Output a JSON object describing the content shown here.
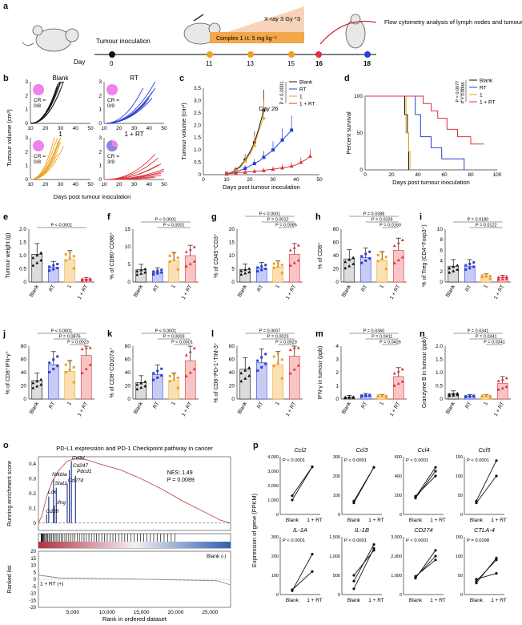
{
  "colors": {
    "blank": "#111111",
    "rt": "#2b3fd6",
    "one": "#f0a020",
    "onert": "#e0303a",
    "pink": "#ee82ee",
    "lav": "#8888dd",
    "gsea": "#c0504d"
  },
  "panel_a": {
    "label": "a",
    "day_label": "Day",
    "days": [
      "0",
      "11",
      "13",
      "15",
      "16",
      "18"
    ],
    "tumour_inoculation": "Tumour inoculation",
    "complex": "Complex 1 i.t. 5 mg kg⁻¹",
    "xray": "X-ray 3 Gy *3",
    "flow": "Flow cytometry analysis of lymph nodes and tumours"
  },
  "panel_b": {
    "label": "b",
    "groups": [
      {
        "title": "Blank",
        "cr": "CR =",
        "crv": "0/8",
        "color": "#111111"
      },
      {
        "title": "RT",
        "cr": "CR =",
        "crv": "0/9",
        "color": "#2b3fd6"
      },
      {
        "title": "1",
        "cr": "CR =",
        "crv": "0/8",
        "color": "#f0a020"
      },
      {
        "title": "1 + RT",
        "cr": "CR =",
        "crv": "3/9",
        "color": "#e0303a"
      }
    ],
    "ylabel": "Tumour volume (cm³)",
    "xlabel": "Days post tumour inoculation",
    "yticks": [
      "0",
      "1",
      "2",
      "3"
    ],
    "xticks": [
      "10",
      "20",
      "30",
      "40",
      "50"
    ]
  },
  "panel_c": {
    "label": "c",
    "title": "Day 26",
    "ylabel": "Tumour volume (cm³)",
    "xlabel": "Days post tumour inoculation",
    "pval": "P < 0.0001",
    "yticks": [
      "0",
      "0.5",
      "1.0",
      "1.5",
      "2.0",
      "2.5",
      "3.0",
      "3.5"
    ],
    "xticks": [
      "0",
      "10",
      "20",
      "30",
      "40",
      "50"
    ],
    "legend": [
      "Blank",
      "RT",
      "1",
      "1 + RT"
    ]
  },
  "panel_d": {
    "label": "d",
    "ylabel": "Percent survival",
    "xlabel": "Days post tumour inoculation",
    "yticks": [
      "0",
      "50",
      "100"
    ],
    "xticks": [
      "0",
      "20",
      "40",
      "60",
      "80",
      "100"
    ],
    "legend": [
      "Blank",
      "RT",
      "1",
      "1 + RT"
    ],
    "pvals": [
      "P = 0.0077",
      "P = 0.0008"
    ]
  },
  "bar_panels": [
    {
      "label": "e",
      "ylabel": "Tumour weight (g)",
      "yticks": [
        "0",
        "0.5",
        "1.0",
        "1.5",
        "2.0"
      ],
      "pvals": [
        "P < 0.0001"
      ]
    },
    {
      "label": "f",
      "ylabel": "% of CD80⁺CD86⁺",
      "yticks": [
        "0",
        "5",
        "10",
        "15"
      ],
      "pvals": [
        "P < 0.0001",
        "P < 0.0001"
      ]
    },
    {
      "label": "g",
      "ylabel": "% of CD45⁺CD3⁺",
      "yticks": [
        "0",
        "5",
        "10",
        "15",
        "20"
      ],
      "pvals": [
        "P < 0.0001",
        "P = 0.0012",
        "P = 0.0085"
      ]
    },
    {
      "label": "h",
      "ylabel": "% of CD8⁺",
      "yticks": [
        "0",
        "20",
        "40",
        "60",
        "80"
      ],
      "pvals": [
        "P = 0.0388",
        "P = 0.0326",
        "P = 0.0160"
      ]
    },
    {
      "label": "i",
      "ylabel": "% of Treg (CD4⁺Foxp3⁺)",
      "yticks": [
        "0",
        "2",
        "4",
        "6",
        "8",
        "10"
      ],
      "pvals": [
        "P = 0.0180",
        "P = 0.0122"
      ]
    },
    {
      "label": "j",
      "ylabel": "% of CD8⁺IFN-γ⁺",
      "yticks": [
        "0",
        "20",
        "40",
        "60",
        "80"
      ],
      "pvals": [
        "P < 0.0001",
        "P = 0.0876",
        "P = 0.0023"
      ]
    },
    {
      "label": "k",
      "ylabel": "% of CD8⁺CD107a⁺",
      "yticks": [
        "0",
        "20",
        "40",
        "60",
        "80"
      ],
      "pvals": [
        "P < 0.0001",
        "P = 0.0003",
        "P < 0.0001"
      ]
    },
    {
      "label": "l",
      "ylabel": "% of CD8⁺PD-1⁺TIM-3⁺",
      "yticks": [
        "0",
        "20",
        "40",
        "60",
        "80"
      ],
      "pvals": [
        "P = 0.0007",
        "P = 0.0023",
        "P = 0.0023"
      ]
    },
    {
      "label": "m",
      "ylabel": "IFN-γ in tumour (ppb)",
      "yticks": [
        "0",
        "1",
        "2",
        "3",
        "4"
      ],
      "pvals": [
        "P = 0.0360",
        "P = 0.0411",
        "P = 0.0426"
      ]
    },
    {
      "label": "n",
      "ylabel": "Granzyme B in tumour (ppb)",
      "yticks": [
        "0",
        "0.5",
        "1.0",
        "1.5",
        "2.0"
      ],
      "pvals": [
        "P = 0.0341",
        "P = 0.0341",
        "P = 0.0341"
      ]
    }
  ],
  "groups_x": [
    "Blank",
    "RT",
    "1",
    "1 + RT"
  ],
  "panel_o": {
    "label": "o",
    "title": "PD-L1 expression and PD-1 Checkpoint pathway in cancer",
    "ylabel": "Running enrichment score",
    "ylabel2": "Ranked list",
    "xlabel": "Rank in ordered dataset",
    "nes": "NES: 1.49",
    "p": "P = 0.0089",
    "genes": [
      "Cd3d",
      "Cd247",
      "Pdcd1",
      "Nfkbia",
      "Cd274",
      "Stat1",
      "Lck",
      "Ifng",
      "Cd28"
    ],
    "yticks": [
      "0",
      "0.1",
      "0.2",
      "0.3",
      "0.4"
    ],
    "yticks2": [
      "20",
      "15",
      "10",
      "5",
      "0",
      "-5",
      "-10",
      "-15",
      "-20"
    ],
    "xticks": [
      "5,000",
      "10,000",
      "15,000",
      "20,000",
      "25,000"
    ],
    "blank_neg": "Blank (-)",
    "onert_pos": "1 + RT (+)"
  },
  "panel_p": {
    "label": "p",
    "ylabel": "Expression of gene (FPKM)",
    "xcats": [
      "Blank",
      "1 + RT"
    ],
    "genes": [
      {
        "name": "Ccl2",
        "p": "P < 0.0001",
        "yticks": [
          "0",
          "1,000",
          "2,000",
          "3,000",
          "4,000"
        ]
      },
      {
        "name": "Ccl3",
        "p": "P < 0.0001",
        "yticks": [
          "0",
          "100",
          "200",
          "300"
        ]
      },
      {
        "name": "Ccl4",
        "p": "P < 0.0001",
        "yticks": [
          "0",
          "200",
          "400",
          "600"
        ]
      },
      {
        "name": "Ccl5",
        "p": "P < 0.0001",
        "yticks": [
          "0",
          "50",
          "100",
          "150"
        ]
      },
      {
        "name": "IL-1A",
        "p": "P < 0.0001",
        "yticks": [
          "0",
          "100",
          "200",
          "300"
        ]
      },
      {
        "name": "IL-1B",
        "p": "P < 0.0001",
        "yticks": [
          "0",
          "500",
          "1,000",
          "1,500"
        ]
      },
      {
        "name": "CD274",
        "p": "P < 0.0001",
        "yticks": [
          "0",
          "1,000",
          "2,000",
          "3,000"
        ]
      },
      {
        "name": "CTLA-4",
        "p": "P = 0.0298",
        "yticks": [
          "0",
          "50",
          "100",
          "150"
        ]
      }
    ]
  },
  "chart_data": [
    {
      "type": "line",
      "xlabel": "Days post tumour inoculation",
      "ylabel": "Tumour volume (cm³)",
      "title": "Day 26",
      "series": [
        {
          "name": "Blank",
          "x": [
            10,
            12,
            14,
            16,
            18,
            20,
            22,
            24,
            26
          ],
          "y": [
            0.05,
            0.1,
            0.2,
            0.35,
            0.6,
            0.9,
            1.3,
            1.9,
            2.6
          ]
        },
        {
          "name": "RT",
          "x": [
            10,
            12,
            14,
            16,
            18,
            20,
            22,
            24,
            26,
            28,
            30,
            32,
            34,
            36,
            38
          ],
          "y": [
            0.05,
            0.08,
            0.12,
            0.18,
            0.25,
            0.35,
            0.45,
            0.55,
            0.7,
            0.85,
            1.0,
            1.2,
            1.4,
            1.6,
            1.8
          ]
        },
        {
          "name": "1",
          "x": [
            10,
            12,
            14,
            16,
            18,
            20,
            22,
            24,
            26
          ],
          "y": [
            0.05,
            0.1,
            0.18,
            0.3,
            0.55,
            0.8,
            1.2,
            1.8,
            2.3
          ]
        },
        {
          "name": "1 + RT",
          "x": [
            10,
            12,
            14,
            16,
            18,
            20,
            22,
            24,
            26,
            28,
            30,
            32,
            34,
            36,
            38,
            40,
            42,
            44,
            46
          ],
          "y": [
            0.03,
            0.05,
            0.07,
            0.09,
            0.1,
            0.12,
            0.14,
            0.15,
            0.17,
            0.2,
            0.22,
            0.25,
            0.28,
            0.3,
            0.35,
            0.4,
            0.5,
            0.6,
            0.75
          ]
        }
      ],
      "ylim": [
        0,
        3.5
      ],
      "xlim": [
        0,
        50
      ]
    },
    {
      "type": "line",
      "xlabel": "Days post tumour inoculation",
      "ylabel": "Percent survival",
      "series": [
        {
          "name": "Blank",
          "steps": [
            [
              0,
              100
            ],
            [
              28,
              100
            ],
            [
              30,
              75
            ],
            [
              32,
              50
            ],
            [
              33,
              0
            ]
          ]
        },
        {
          "name": "RT",
          "steps": [
            [
              0,
              100
            ],
            [
              35,
              100
            ],
            [
              38,
              75
            ],
            [
              42,
              45
            ],
            [
              50,
              30
            ],
            [
              58,
              15
            ],
            [
              75,
              0
            ]
          ]
        },
        {
          "name": "1",
          "steps": [
            [
              0,
              100
            ],
            [
              29,
              100
            ],
            [
              31,
              50
            ],
            [
              33,
              25
            ],
            [
              34,
              0
            ]
          ]
        },
        {
          "name": "1 + RT",
          "steps": [
            [
              0,
              100
            ],
            [
              40,
              100
            ],
            [
              44,
              90
            ],
            [
              50,
              80
            ],
            [
              55,
              70
            ],
            [
              62,
              55
            ],
            [
              70,
              45
            ],
            [
              80,
              35
            ],
            [
              90,
              35
            ]
          ]
        }
      ],
      "ylim": [
        0,
        100
      ],
      "xlim": [
        0,
        100
      ]
    },
    {
      "type": "bar",
      "title": "e",
      "categories": [
        "Blank",
        "RT",
        "1",
        "1 + RT"
      ],
      "values": [
        1.05,
        0.55,
        0.85,
        0.1
      ],
      "ylim": [
        0,
        2.0
      ]
    },
    {
      "type": "bar",
      "title": "f",
      "categories": [
        "Blank",
        "RT",
        "1",
        "1 + RT"
      ],
      "values": [
        3.5,
        2.8,
        6.0,
        7.5
      ],
      "ylim": [
        0,
        15
      ]
    },
    {
      "type": "bar",
      "title": "g",
      "categories": [
        "Blank",
        "RT",
        "1",
        "1 + RT"
      ],
      "values": [
        4.8,
        5.2,
        5.6,
        10.5
      ],
      "ylim": [
        0,
        20
      ]
    },
    {
      "type": "bar",
      "title": "h",
      "categories": [
        "Blank",
        "RT",
        "1",
        "1 + RT"
      ],
      "values": [
        35,
        37,
        33,
        48
      ],
      "ylim": [
        0,
        80
      ]
    },
    {
      "type": "bar",
      "title": "i",
      "categories": [
        "Blank",
        "RT",
        "1",
        "1 + RT"
      ],
      "values": [
        3.0,
        3.0,
        1.0,
        0.8
      ],
      "ylim": [
        0,
        10
      ]
    },
    {
      "type": "bar",
      "title": "j",
      "categories": [
        "Blank",
        "RT",
        "1",
        "1 + RT"
      ],
      "values": [
        28,
        52,
        42,
        66
      ],
      "ylim": [
        0,
        80
      ]
    },
    {
      "type": "bar",
      "title": "k",
      "categories": [
        "Blank",
        "RT",
        "1",
        "1 + RT"
      ],
      "values": [
        25,
        37,
        28,
        58
      ],
      "ylim": [
        0,
        80
      ]
    },
    {
      "type": "bar",
      "title": "l",
      "categories": [
        "Blank",
        "RT",
        "1",
        "1 + RT"
      ],
      "values": [
        45,
        55,
        52,
        65
      ],
      "ylim": [
        0,
        80
      ]
    },
    {
      "type": "bar",
      "title": "m",
      "categories": [
        "Blank",
        "RT",
        "1",
        "1 + RT"
      ],
      "values": [
        0.15,
        0.25,
        0.2,
        1.7
      ],
      "ylim": [
        0,
        4
      ]
    },
    {
      "type": "bar",
      "title": "n",
      "categories": [
        "Blank",
        "RT",
        "1",
        "1 + RT"
      ],
      "values": [
        0.2,
        0.1,
        0.1,
        0.6
      ],
      "ylim": [
        0,
        2.0
      ]
    },
    {
      "type": "line",
      "title": "PD-L1 expression and PD-1 Checkpoint pathway in cancer",
      "xlabel": "Rank in ordered dataset",
      "ylabel": "Running enrichment score",
      "ylim": [
        -0.05,
        0.45
      ],
      "xlim": [
        0,
        28000
      ]
    },
    {
      "type": "line",
      "title": "Ccl2",
      "categories": [
        "Blank",
        "1 + RT"
      ],
      "series": [
        {
          "values": [
            1000,
            3300
          ]
        },
        {
          "values": [
            1300,
            3300
          ]
        }
      ],
      "ylim": [
        0,
        4000
      ]
    },
    {
      "type": "line",
      "title": "Ccl3",
      "categories": [
        "Blank",
        "1 + RT"
      ],
      "series": [
        {
          "values": [
            60,
            245
          ]
        },
        {
          "values": [
            70,
            245
          ]
        }
      ],
      "ylim": [
        0,
        300
      ]
    },
    {
      "type": "line",
      "title": "Ccl4",
      "categories": [
        "Blank",
        "1 + RT"
      ],
      "series": [
        {
          "values": [
            170,
            450
          ]
        },
        {
          "values": [
            180,
            490
          ]
        },
        {
          "values": [
            190,
            400
          ]
        }
      ],
      "ylim": [
        0,
        600
      ]
    },
    {
      "type": "line",
      "title": "Ccl5",
      "categories": [
        "Blank",
        "1 + RT"
      ],
      "series": [
        {
          "values": [
            30,
            100
          ]
        },
        {
          "values": [
            35,
            140
          ]
        }
      ],
      "ylim": [
        0,
        150
      ]
    },
    {
      "type": "line",
      "title": "IL-1A",
      "categories": [
        "Blank",
        "1 + RT"
      ],
      "series": [
        {
          "values": [
            20,
            210
          ]
        },
        {
          "values": [
            25,
            120
          ]
        }
      ],
      "ylim": [
        0,
        300
      ]
    },
    {
      "type": "line",
      "title": "IL-1B",
      "categories": [
        "Blank",
        "1 + RT"
      ],
      "series": [
        {
          "values": [
            150,
            1200
          ]
        },
        {
          "values": [
            350,
            1300
          ]
        },
        {
          "values": [
            500,
            1150
          ]
        }
      ],
      "ylim": [
        0,
        1500
      ]
    },
    {
      "type": "line",
      "title": "CD274",
      "categories": [
        "Blank",
        "1 + RT"
      ],
      "series": [
        {
          "values": [
            850,
            2300
          ]
        },
        {
          "values": [
            900,
            2000
          ]
        },
        {
          "values": [
            950,
            1800
          ]
        }
      ],
      "ylim": [
        0,
        3000
      ]
    },
    {
      "type": "line",
      "title": "CTLA-4",
      "categories": [
        "Blank",
        "1 + RT"
      ],
      "series": [
        {
          "values": [
            30,
            95
          ]
        },
        {
          "values": [
            35,
            90
          ]
        },
        {
          "values": [
            40,
            55
          ]
        }
      ],
      "ylim": [
        0,
        150
      ]
    }
  ]
}
